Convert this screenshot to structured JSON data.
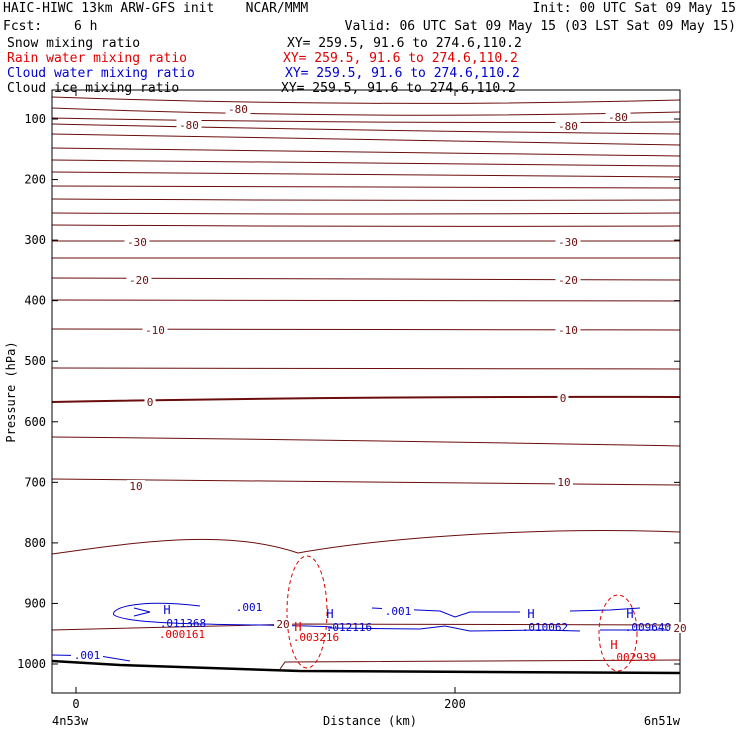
{
  "header": {
    "left_title": "HAIC-HIWC 13km ARW-GFS init    NCAR/MMM",
    "init": "Init: 00 UTC Sat 09 May 15",
    "fcst_label": "Fcst:",
    "fcst_value": "6 h",
    "valid": "Valid: 06 UTC Sat 09 May 15 (03 LST Sat 09 May 15)"
  },
  "fields": [
    {
      "name": "Snow mixing ratio",
      "xy": "XY= 259.5, 91.6 to 274.6,110.2",
      "color": "#000000"
    },
    {
      "name": "Rain water mixing ratio",
      "xy": "XY= 259.5, 91.6 to 274.6,110.2",
      "color": "#e00000"
    },
    {
      "name": "Cloud water mixing ratio",
      "xy": "XY= 259.5, 91.6 to 274.6,110.2",
      "color": "#0000d0"
    },
    {
      "name": "Cloud ice mixing ratio",
      "xy": "XY= 259.5, 91.6 to 274.6,110.2",
      "color": "#000000"
    }
  ],
  "colors": {
    "temperature": "#6b0d0d",
    "rain": "#e00000",
    "cloud_water": "#0000d0",
    "terrain": "#000000"
  },
  "chart_data": {
    "type": "line",
    "title": "",
    "xlabel": "Distance (km)",
    "ylabel": "Pressure (hPa)",
    "x_ticks": [
      0,
      200
    ],
    "xlim": [
      0,
      300
    ],
    "y_ticks": [
      100,
      200,
      300,
      400,
      500,
      600,
      700,
      800,
      900,
      1000
    ],
    "ylim": [
      1050,
      50
    ],
    "y_scale": "linear (inverted)",
    "left_endpoint_label": "4n53w",
    "right_endpoint_label": "6n51w",
    "temperature_contour_labels": [
      "-80",
      "-80",
      "-80",
      "-80",
      "-30",
      "-30",
      "-20",
      "-20",
      "-10",
      "-10",
      "0",
      "0",
      "10",
      "10",
      "20",
      "20"
    ],
    "cloud_water_labels": [
      ".001",
      ".001",
      ".001"
    ],
    "cloud_water_maxima": [
      {
        "symbol": "H",
        "value": ".011368",
        "x": 45,
        "p": 920
      },
      {
        "symbol": "H",
        "value": ".012116",
        "x": 128,
        "p": 923
      },
      {
        "symbol": "H",
        "value": ".010062",
        "x": 236,
        "p": 925
      },
      {
        "symbol": "H",
        "value": ".009640",
        "x": 285,
        "p": 925
      }
    ],
    "rain_maxima": [
      {
        "symbol": "H",
        "value": ".000161",
        "x": 45,
        "p": 945
      },
      {
        "symbol": "H",
        "value": ".003216",
        "x": 120,
        "p": 948
      },
      {
        "symbol": "H",
        "value": ".002939",
        "x": 285,
        "p": 968
      }
    ]
  }
}
